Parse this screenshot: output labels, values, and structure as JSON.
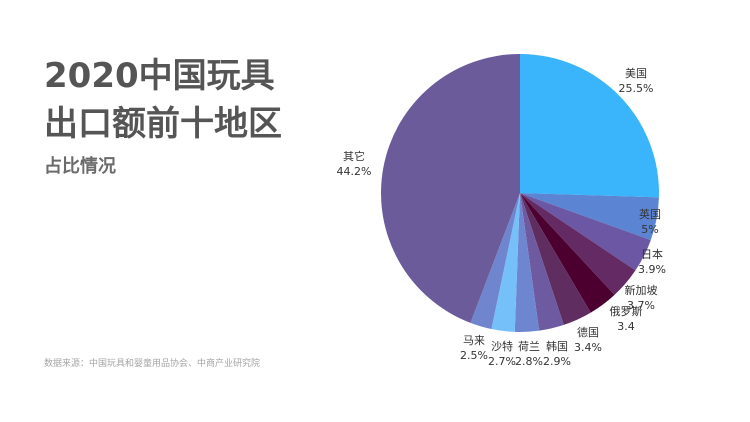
{
  "header": {
    "title_line1": "2020中国玩具",
    "title_line2": "出口额前十地区",
    "subtitle": "占比情况"
  },
  "footer": {
    "source": "数据来源：中国玩具和婴童用品协会、中商产业研究院"
  },
  "chart_data": {
    "type": "pie",
    "title": "2020中国玩具出口额前十地区占比情况",
    "unit": "%",
    "start_angle": "12 o'clock, clockwise",
    "categories": [
      "美国",
      "英国",
      "日本",
      "新加坡",
      "俄罗斯",
      "德国",
      "韩国",
      "荷兰",
      "沙特",
      "马来",
      "其它"
    ],
    "values": [
      25.5,
      5,
      3.9,
      3.7,
      3.4,
      3.4,
      2.9,
      2.8,
      2.7,
      2.5,
      44.2
    ],
    "value_labels": [
      "25.5%",
      "5%",
      "3.9%",
      "3.7%",
      "3.4",
      "3.4%",
      "2.9%",
      "2.8%",
      "2.7%",
      "2.5%",
      "44.2%"
    ],
    "colors": [
      "#3ab4fb",
      "#5b84d2",
      "#6b57a3",
      "#642a63",
      "#4c0030",
      "#5f2d5f",
      "#6d5aa0",
      "#6e86cf",
      "#76c0f9",
      "#6f86cf",
      "#6b5b9b"
    ],
    "legend": "none (direct labels)"
  }
}
